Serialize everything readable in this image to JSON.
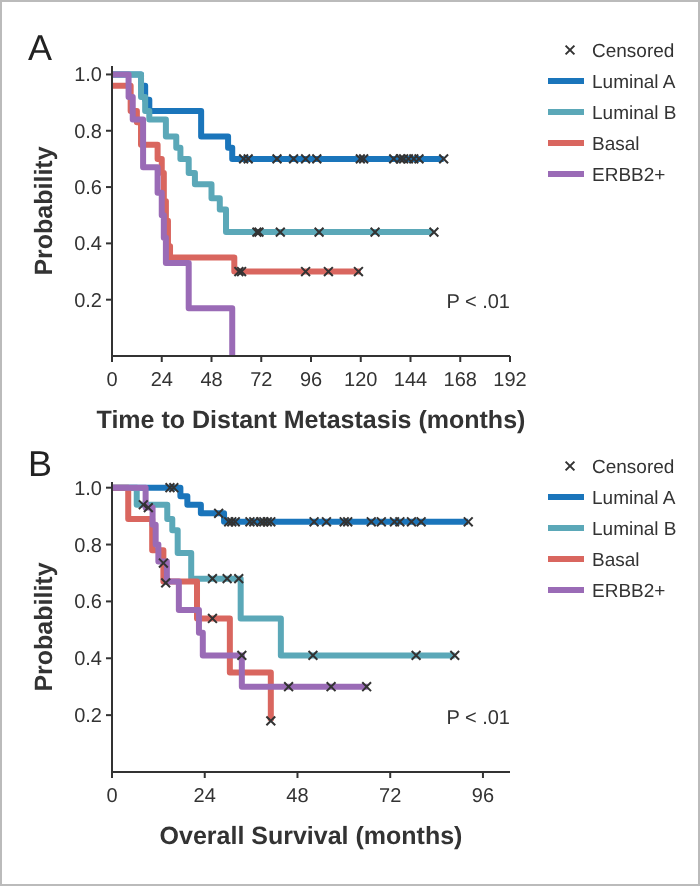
{
  "chart_data": [
    {
      "type": "step",
      "title": "A",
      "xlabel": "Time to Distant Metastasis (months)",
      "ylabel": "Probability",
      "xlim": [
        0,
        192
      ],
      "xticks": [
        0,
        24,
        48,
        72,
        96,
        120,
        144,
        168,
        192
      ],
      "ylim": [
        0,
        1.03
      ],
      "yticks": [
        0.2,
        0.4,
        0.6,
        0.8,
        {
          "value": 1,
          "label": "1.0"
        }
      ],
      "legend": "right",
      "grid": false,
      "annotations": [
        "P < .01"
      ],
      "series": [
        {
          "name": "Censored",
          "type": "scatter",
          "marker": "cross",
          "color": "#333333",
          "x": [
            63.5,
            65.7,
            79.6,
            87.6,
            93.4,
            98.8,
            119.8,
            121.4,
            135.9,
            139.1,
            140.7,
            143,
            145.6,
            148.1,
            160,
            69.9,
            70.9,
            81.2,
            99.9,
            126.9,
            155.3,
            61.2,
            62.5,
            93.4,
            104.4,
            118.9
          ],
          "values": [
            0.7,
            0.7,
            0.7,
            0.7,
            0.7,
            0.7,
            0.7,
            0.7,
            0.7,
            0.7,
            0.7,
            0.7,
            0.7,
            0.7,
            0.7,
            0.44,
            0.44,
            0.44,
            0.44,
            0.44,
            0.44,
            0.3,
            0.3,
            0.3,
            0.3,
            0.3
          ]
        },
        {
          "name": "Luminal A",
          "color": "#1a75bb",
          "x": [
            0,
            14,
            16,
            18,
            43,
            56,
            58,
            160
          ],
          "values": [
            1,
            0.96,
            0.91,
            0.87,
            0.78,
            0.74,
            0.7,
            0.7
          ]
        },
        {
          "name": "Luminal B",
          "color": "#5ba8b8",
          "x": [
            0,
            14,
            16,
            18,
            26,
            31,
            33,
            37,
            40,
            48,
            52,
            55,
            155
          ],
          "values": [
            1,
            0.92,
            0.87,
            0.84,
            0.78,
            0.74,
            0.7,
            0.65,
            0.61,
            0.56,
            0.52,
            0.44,
            0.44
          ]
        },
        {
          "name": "Basal",
          "color": "#d9665f",
          "x": [
            0,
            9,
            12,
            14,
            22,
            24,
            25,
            26,
            27,
            28,
            59,
            120
          ],
          "values": [
            0.96,
            0.87,
            0.83,
            0.75,
            0.7,
            0.65,
            0.55,
            0.48,
            0.39,
            0.35,
            0.3,
            0.3
          ]
        },
        {
          "name": "ERBB2+",
          "color": "#9a6bb6",
          "x": [
            0,
            8,
            10,
            15,
            22,
            24,
            25,
            26,
            37,
            58
          ],
          "values": [
            1,
            0.92,
            0.84,
            0.67,
            0.58,
            0.5,
            0.42,
            0.33,
            0.17,
            0
          ]
        }
      ]
    },
    {
      "type": "step",
      "title": "B",
      "xlabel": "Overall Survival (months)",
      "ylabel": "Probability",
      "xlim": [
        0,
        103
      ],
      "xticks": [
        0,
        24,
        48,
        72,
        96
      ],
      "ylim": [
        0,
        1.02
      ],
      "yticks": [
        0.2,
        0.4,
        0.6,
        0.8,
        {
          "value": 1,
          "label": "1.0"
        }
      ],
      "legend": "right",
      "grid": false,
      "annotations": [
        "P < .01"
      ],
      "series": [
        {
          "name": "Censored",
          "type": "scatter",
          "marker": "cross",
          "color": "#333333",
          "x": [
            15,
            16,
            27.6,
            30.2,
            31,
            31.9,
            35.7,
            36.7,
            38.5,
            39.3,
            40.2,
            41.1,
            52.3,
            55.5,
            60.1,
            61,
            67.1,
            69.7,
            73.1,
            74.5,
            77.5,
            80,
            92.2,
            8.1,
            26,
            29.8,
            32.8,
            52,
            78.7,
            88.7,
            13.3,
            13.9,
            26,
            41.1,
            9.4,
            33.6,
            45.7,
            56.7,
            65.9
          ],
          "values": [
            1,
            1,
            0.91,
            0.88,
            0.88,
            0.88,
            0.88,
            0.88,
            0.88,
            0.88,
            0.88,
            0.88,
            0.88,
            0.88,
            0.88,
            0.88,
            0.88,
            0.88,
            0.88,
            0.88,
            0.88,
            0.88,
            0.88,
            0.94,
            0.68,
            0.68,
            0.68,
            0.41,
            0.41,
            0.41,
            0.735,
            0.665,
            0.54,
            0.18,
            0.93,
            0.41,
            0.3,
            0.3,
            0.3
          ]
        },
        {
          "name": "Luminal A",
          "color": "#1a75bb",
          "x": [
            0,
            17.7,
            19.5,
            21,
            23,
            29,
            92.2
          ],
          "values": [
            1,
            0.97,
            0.94,
            0.94,
            0.91,
            0.88,
            0.88
          ]
        },
        {
          "name": "Luminal B",
          "color": "#5ba8b8",
          "x": [
            0,
            6.4,
            14.3,
            15.6,
            17,
            20.5,
            33.3,
            43.7,
            88.7
          ],
          "values": [
            1,
            0.94,
            0.89,
            0.85,
            0.77,
            0.68,
            0.54,
            0.41,
            0.41
          ]
        },
        {
          "name": "Basal",
          "color": "#d9665f",
          "x": [
            0,
            4.2,
            10.4,
            13.3,
            22,
            30.5,
            41.1
          ],
          "values": [
            1,
            0.89,
            0.78,
            0.67,
            0.54,
            0.35,
            0.18
          ]
        },
        {
          "name": "ERBB2+",
          "color": "#9a6bb6",
          "x": [
            0,
            8.7,
            10.5,
            11.3,
            12,
            14.2,
            17.3,
            22.5,
            23.5,
            33.6,
            66.2
          ],
          "values": [
            1,
            0.93,
            0.87,
            0.8,
            0.74,
            0.67,
            0.57,
            0.49,
            0.41,
            0.3,
            0.3
          ]
        }
      ]
    }
  ]
}
